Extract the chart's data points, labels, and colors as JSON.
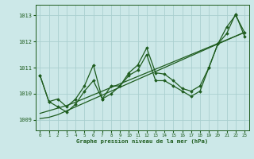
{
  "title": "Graphe pression niveau de la mer (hPa)",
  "bg_color": "#cce8e8",
  "grid_color": "#aacfcf",
  "line_color": "#1e5c1e",
  "marker_color": "#1e5c1e",
  "ylim": [
    1008.6,
    1013.4
  ],
  "yticks": [
    1009,
    1010,
    1011,
    1012,
    1013
  ],
  "xlim": [
    -0.5,
    23.5
  ],
  "xticks": [
    0,
    1,
    2,
    3,
    4,
    5,
    6,
    7,
    8,
    9,
    10,
    11,
    12,
    13,
    14,
    15,
    16,
    17,
    18,
    19,
    20,
    21,
    22,
    23
  ],
  "series_with_markers": [
    [
      1010.7,
      1009.7,
      1009.8,
      1009.5,
      1009.8,
      1010.3,
      1011.1,
      1009.8,
      1010.3,
      1010.3,
      1010.8,
      1011.1,
      1011.75,
      1010.8,
      1010.75,
      1010.5,
      1010.2,
      1010.1,
      1010.3,
      1011.0,
      1011.9,
      1012.55,
      1013.0,
      1012.35
    ],
    [
      1010.7,
      1009.7,
      1009.5,
      1009.3,
      1009.6,
      1010.1,
      1010.5,
      1009.8,
      1010.0,
      1010.3,
      1010.7,
      1010.9,
      1011.5,
      1010.5,
      1010.5,
      1010.3,
      1010.1,
      1009.9,
      1010.1,
      1011.0,
      1011.9,
      1012.3,
      1013.05,
      1012.2
    ]
  ],
  "series_smooth": [
    [
      1009.05,
      1009.1,
      1009.2,
      1009.35,
      1009.5,
      1009.65,
      1009.8,
      1009.95,
      1010.1,
      1010.25,
      1010.4,
      1010.55,
      1010.7,
      1010.85,
      1011.0,
      1011.15,
      1011.3,
      1011.45,
      1011.6,
      1011.75,
      1011.9,
      1012.05,
      1012.2,
      1012.35
    ],
    [
      1009.25,
      1009.35,
      1009.45,
      1009.55,
      1009.68,
      1009.82,
      1009.96,
      1010.1,
      1010.24,
      1010.38,
      1010.52,
      1010.66,
      1010.8,
      1010.94,
      1011.08,
      1011.22,
      1011.36,
      1011.5,
      1011.64,
      1011.78,
      1011.92,
      1012.06,
      1012.2,
      1012.34
    ]
  ]
}
